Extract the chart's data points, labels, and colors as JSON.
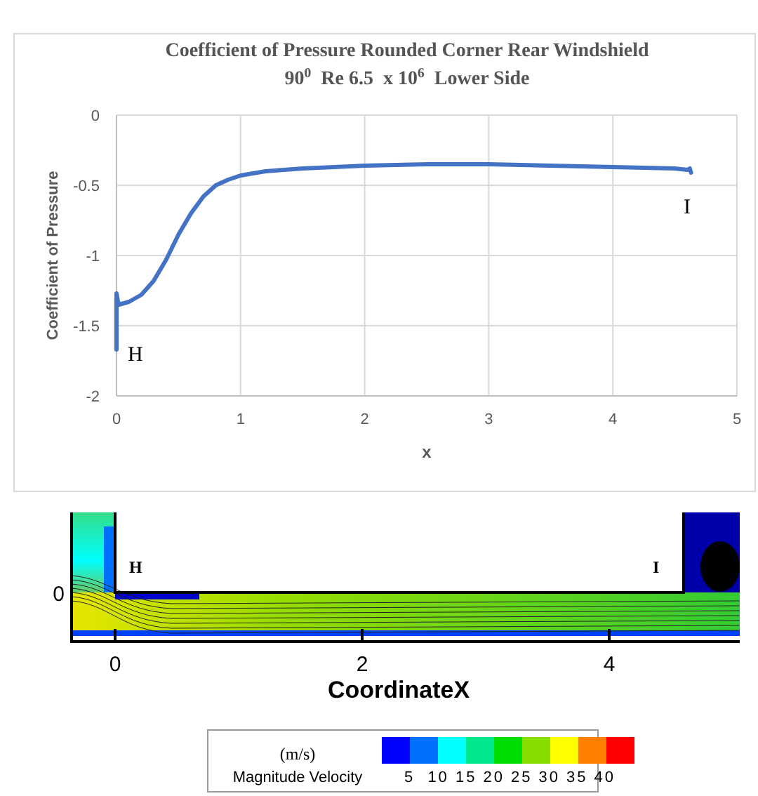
{
  "chart_data": [
    {
      "type": "line",
      "title": "Coefficient of Pressure Rounded Corner Rear Windshield",
      "subtitle": "90$^{0}$  Re 6.5  x 10$^{6}$  Lower Side",
      "xlabel": "x",
      "ylabel": "Coefficient of Pressure",
      "x": [
        0,
        0,
        0.01,
        0.02,
        0.1,
        0.2,
        0.3,
        0.4,
        0.5,
        0.6,
        0.7,
        0.8,
        0.9,
        1.0,
        1.2,
        1.5,
        2,
        2.5,
        3,
        3.5,
        4,
        4.5,
        4.6,
        4.62,
        4.63
      ],
      "series": [
        {
          "color": "#4472c4",
          "values": [
            -1.67,
            -1.27,
            -1.32,
            -1.35,
            -1.33,
            -1.28,
            -1.18,
            -1.03,
            -0.85,
            -0.7,
            -0.58,
            -0.5,
            -0.46,
            -0.43,
            -0.4,
            -0.38,
            -0.36,
            -0.35,
            -0.35,
            -0.36,
            -0.37,
            -0.38,
            -0.39,
            -0.38,
            -0.41
          ]
        }
      ],
      "xlim": [
        0,
        5
      ],
      "xticks": [
        0,
        1,
        2,
        3,
        4,
        5
      ],
      "ylim": [
        -2,
        0
      ],
      "yticks": [
        -2,
        -1.5,
        -1,
        -0.5,
        0
      ],
      "grid": true,
      "marker": "none",
      "line_style": "solid",
      "annotations": [
        "H",
        "I"
      ]
    },
    {
      "type": "other",
      "xlabel": "CoordinateX",
      "clabel": "Magnitude Velocity",
      "annotations": [
        "H",
        "I",
        "0",
        "2",
        "4",
        "0",
        "(m/s)",
        "5  10 15 20 25 30 35 40"
      ],
      "colors": [
        "#0000ff",
        "#0070ff",
        "#00ffff",
        "#00e68a",
        "#00dd00",
        "#88dd00",
        "#ffff00",
        "#ff8000",
        "#ff0000"
      ]
    }
  ]
}
